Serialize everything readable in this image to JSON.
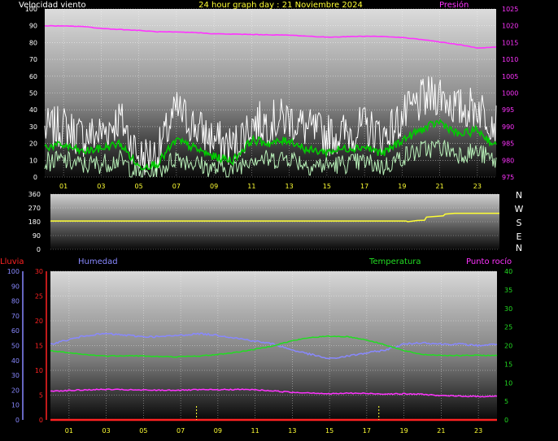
{
  "header": {
    "title": "24 hour graph day : 21 Noviembre 2024",
    "wind_label": "Velocidad viento",
    "pressure_label": "Presión"
  },
  "colors": {
    "wind_gust": "#ffffff",
    "wind_avg": "#00cc00",
    "wind_low": "#b8f0b8",
    "pressure": "#ff33ff",
    "direction": "#ffff33",
    "humidity": "#8888ff",
    "temperature": "#22dd22",
    "dewpoint": "#ff33ff",
    "rain": "#ff2222",
    "grid": "#ffffff"
  },
  "middle": {
    "compass": [
      "N",
      "W",
      "S",
      "E",
      "N"
    ]
  },
  "bottom_header": {
    "rain_label": "Lluvia",
    "humidity_label": "Humedad",
    "temp_label": "Temperatura",
    "dew_label": "Punto rocío"
  },
  "chart_data": [
    {
      "type": "line",
      "title": "24 hour graph day : 21 Noviembre 2024",
      "x_ticks": [
        "01",
        "03",
        "05",
        "07",
        "09",
        "11",
        "13",
        "15",
        "17",
        "19",
        "21",
        "23"
      ],
      "xlim": [
        0,
        24
      ],
      "left_axis": {
        "label": "Velocidad viento",
        "ylim": [
          0,
          100
        ],
        "ticks": [
          0,
          10,
          20,
          30,
          40,
          50,
          60,
          70,
          80,
          90,
          100
        ]
      },
      "right_axis": {
        "label": "Presión",
        "ylim": [
          975,
          1025
        ],
        "ticks": [
          975,
          980,
          985,
          990,
          995,
          1000,
          1005,
          1010,
          1015,
          1020,
          1025
        ]
      },
      "series": [
        {
          "name": "gust",
          "axis": "left",
          "x": [
            0,
            1,
            2,
            3,
            4,
            5,
            6,
            7,
            8,
            9,
            10,
            11,
            12,
            13,
            14,
            15,
            16,
            17,
            18,
            19,
            20,
            21,
            22,
            23,
            24
          ],
          "y": [
            28,
            30,
            24,
            26,
            35,
            12,
            14,
            40,
            30,
            22,
            18,
            32,
            33,
            35,
            28,
            25,
            26,
            30,
            24,
            35,
            45,
            50,
            40,
            42,
            32
          ]
        },
        {
          "name": "average",
          "axis": "left",
          "x": [
            0,
            1,
            2,
            3,
            4,
            5,
            6,
            7,
            8,
            9,
            10,
            11,
            12,
            13,
            14,
            15,
            16,
            17,
            18,
            19,
            20,
            21,
            22,
            23,
            24
          ],
          "y": [
            18,
            19,
            15,
            17,
            20,
            6,
            8,
            22,
            17,
            12,
            10,
            22,
            20,
            22,
            16,
            15,
            17,
            18,
            14,
            22,
            28,
            33,
            25,
            28,
            18
          ]
        },
        {
          "name": "low",
          "axis": "left",
          "x": [
            0,
            1,
            2,
            3,
            4,
            5,
            6,
            7,
            8,
            9,
            10,
            11,
            12,
            13,
            14,
            15,
            16,
            17,
            18,
            19,
            20,
            21,
            22,
            23,
            24
          ],
          "y": [
            9,
            10,
            7,
            8,
            10,
            2,
            3,
            12,
            8,
            5,
            4,
            12,
            10,
            12,
            7,
            7,
            8,
            9,
            6,
            12,
            16,
            18,
            14,
            15,
            9
          ]
        },
        {
          "name": "pressure",
          "axis": "right",
          "x": [
            0,
            2,
            3,
            5,
            6,
            8,
            9,
            11,
            13,
            15,
            17,
            18,
            19,
            20,
            21,
            22,
            23,
            24
          ],
          "y": [
            1020,
            1019.8,
            1019.2,
            1018.6,
            1018.2,
            1018.0,
            1017.6,
            1017.4,
            1017.2,
            1016.6,
            1016.9,
            1016.8,
            1016.5,
            1015.9,
            1015.2,
            1014.4,
            1013.4,
            1013.6
          ]
        }
      ]
    },
    {
      "type": "line",
      "x_ticks": [],
      "xlim": [
        0,
        24
      ],
      "ylim": [
        0,
        360
      ],
      "y_ticks": [
        0,
        90,
        180,
        270,
        360
      ],
      "series": [
        {
          "name": "direction",
          "x": [
            0,
            19.0,
            19.1,
            19.6,
            20.0,
            20.1,
            21.0,
            21.1,
            21.6,
            24
          ],
          "y": [
            185,
            185,
            180,
            188,
            190,
            210,
            218,
            230,
            235,
            235
          ]
        }
      ]
    },
    {
      "type": "line",
      "x_ticks": [
        "01",
        "03",
        "05",
        "07",
        "09",
        "11",
        "13",
        "15",
        "17",
        "19",
        "21",
        "23"
      ],
      "xlim": [
        0,
        24
      ],
      "rain_axis": {
        "label": "Lluvia",
        "ylim": [
          0,
          30
        ],
        "ticks": [
          0,
          5,
          10,
          15,
          20,
          25,
          30
        ]
      },
      "humidity_axis": {
        "label": "Humedad",
        "ylim": [
          0,
          100
        ],
        "ticks": [
          0,
          10,
          20,
          30,
          40,
          50,
          60,
          70,
          80,
          90,
          100
        ]
      },
      "temp_axis": {
        "label": "Temperatura",
        "ylim": [
          0,
          40
        ],
        "ticks": [
          0,
          5,
          10,
          15,
          20,
          25,
          30,
          35,
          40
        ]
      },
      "series": [
        {
          "name": "Humedad",
          "axis": "humidity",
          "x": [
            0,
            1,
            2,
            3,
            4,
            5,
            6,
            7,
            8,
            9,
            10,
            11,
            12,
            13,
            14,
            15,
            16,
            17,
            18,
            19,
            20,
            21,
            22,
            23,
            24
          ],
          "y": [
            51,
            54,
            57,
            58,
            57,
            56,
            56,
            57,
            58,
            57,
            55,
            53,
            51,
            47,
            44,
            41,
            43,
            45,
            47,
            51,
            52,
            51,
            51,
            50,
            51
          ]
        },
        {
          "name": "Temperatura",
          "axis": "temp",
          "x": [
            0,
            1,
            2,
            3,
            4,
            5,
            6,
            7,
            8,
            9,
            10,
            11,
            12,
            13,
            14,
            15,
            16,
            17,
            18,
            19,
            20,
            21,
            22,
            23,
            24
          ],
          "y": [
            18.6,
            18.0,
            17.5,
            17.2,
            17.3,
            17.2,
            17.0,
            17.0,
            17.2,
            17.6,
            18.2,
            19.0,
            20.0,
            21.3,
            22.2,
            22.5,
            22.4,
            21.5,
            20.2,
            18.6,
            17.6,
            17.4,
            17.3,
            17.4,
            17.3
          ]
        },
        {
          "name": "Punto rocío",
          "axis": "temp",
          "x": [
            0,
            1,
            2,
            3,
            4,
            5,
            6,
            7,
            8,
            9,
            10,
            11,
            12,
            13,
            14,
            15,
            16,
            17,
            18,
            19,
            20,
            21,
            22,
            23,
            24
          ],
          "y": [
            7.8,
            7.9,
            8.1,
            8.2,
            8.1,
            8.0,
            8.0,
            8.0,
            8.1,
            8.1,
            8.2,
            8.1,
            7.8,
            7.4,
            7.3,
            7.0,
            7.2,
            7.1,
            7.0,
            7.0,
            6.9,
            6.5,
            6.4,
            6.3,
            6.4
          ]
        },
        {
          "name": "Lluvia",
          "axis": "rain",
          "x": [
            0,
            24
          ],
          "y": [
            0,
            0
          ]
        }
      ],
      "markers": [
        7.85,
        17.65
      ]
    }
  ]
}
